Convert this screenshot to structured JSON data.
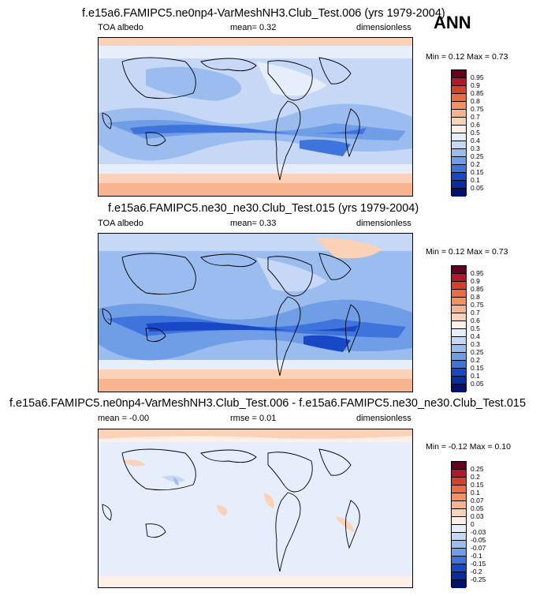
{
  "season": "ANN",
  "panels": [
    {
      "title": "f.e15a6.FAMIPC5.ne0np4-VarMeshNH3.Club_Test.006 (yrs 1979-2004)",
      "left": "TOA albedo",
      "center": "mean=  0.32",
      "right": "dimensionless",
      "minmax": "Min =  0.12 Max =  0.73",
      "levels": [
        "0.95",
        "0.9",
        "0.85",
        "0.8",
        "0.75",
        "0.7",
        "0.6",
        "0.5",
        "0.4",
        "0.3",
        "0.25",
        "0.2",
        "0.15",
        "0.1",
        "0.05"
      ],
      "colors": [
        "#67001f",
        "#b2182b",
        "#d6412c",
        "#ed6a44",
        "#f4915f",
        "#f8b48e",
        "#fbd2b7",
        "#fef0e6",
        "#e6eefc",
        "#c6d8f6",
        "#9bbcee",
        "#6f9de6",
        "#3e74dc",
        "#1848c6",
        "#082d9e",
        "#02116e"
      ]
    },
    {
      "title": "f.e15a6.FAMIPC5.ne30_ne30.Club_Test.015 (yrs 1979-2004)",
      "left": "TOA albedo",
      "center": "mean=  0.33",
      "right": "dimensionless",
      "minmax": "Min =  0.12 Max =  0.73",
      "levels": [
        "0.95",
        "0.9",
        "0.85",
        "0.8",
        "0.75",
        "0.7",
        "0.6",
        "0.5",
        "0.4",
        "0.3",
        "0.25",
        "0.2",
        "0.15",
        "0.1",
        "0.05"
      ],
      "colors": [
        "#67001f",
        "#b2182b",
        "#d6412c",
        "#ed6a44",
        "#f4915f",
        "#f8b48e",
        "#fbd2b7",
        "#fef0e6",
        "#e6eefc",
        "#c6d8f6",
        "#9bbcee",
        "#6f9de6",
        "#3e74dc",
        "#1848c6",
        "#082d9e",
        "#02116e"
      ]
    },
    {
      "title": "f.e15a6.FAMIPC5.ne0np4-VarMeshNH3.Club_Test.006 - f.e15a6.FAMIPC5.ne30_ne30.Club_Test.015",
      "left": "mean = -0.00",
      "center": "rmse =  0.01",
      "right": "dimensionless",
      "minmax": "Min = -0.12 Max =  0.10",
      "levels": [
        "0.25",
        "0.2",
        "0.15",
        "0.1",
        "0.07",
        "0.05",
        "0.03",
        "0",
        "-0.03",
        "-0.05",
        "-0.07",
        "-0.1",
        "-0.15",
        "-0.2",
        "-0.25"
      ],
      "colors": [
        "#67001f",
        "#b2182b",
        "#d6412c",
        "#ed6a44",
        "#f4915f",
        "#f8b48e",
        "#fbd2b7",
        "#fef0e6",
        "#e6eefc",
        "#c6d8f6",
        "#9bbcee",
        "#6f9de6",
        "#3e74dc",
        "#1848c6",
        "#082d9e",
        "#02116e"
      ]
    }
  ]
}
